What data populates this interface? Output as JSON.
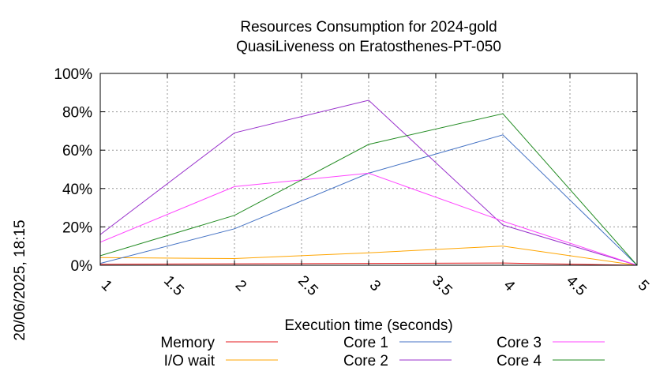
{
  "chart_data": {
    "type": "line",
    "title": "Resources Consumption for 2024-gold",
    "subtitle": "QuasiLiveness on Eratosthenes-PT-050",
    "xlabel": "Execution time (seconds)",
    "ylabel": "",
    "side_label": "20/06/2025, 18:15",
    "xlim": [
      1,
      5
    ],
    "ylim": [
      0,
      100
    ],
    "x_ticks": [
      "1",
      "1.5",
      "2",
      "2.5",
      "3",
      "3.5",
      "4",
      "4.5",
      "5"
    ],
    "y_ticks": [
      "0%",
      "20%",
      "40%",
      "60%",
      "80%",
      "100%"
    ],
    "grid": true,
    "legend_position": "bottom",
    "series": [
      {
        "name": "Memory",
        "color": "#e41a1c",
        "x": [
          1,
          2,
          3,
          4,
          5
        ],
        "values": [
          0.5,
          0.8,
          1.0,
          1.2,
          0
        ]
      },
      {
        "name": "I/O wait",
        "color": "#ffa500",
        "x": [
          1,
          2,
          3,
          4,
          5
        ],
        "values": [
          4,
          3.5,
          6.5,
          10,
          0
        ]
      },
      {
        "name": "Core 1",
        "color": "#4472c4",
        "x": [
          1,
          2,
          3,
          4,
          5
        ],
        "values": [
          1,
          19,
          48,
          68,
          0
        ]
      },
      {
        "name": "Core 2",
        "color": "#9932cc",
        "x": [
          1,
          2,
          3,
          4,
          5
        ],
        "values": [
          16,
          69,
          86,
          21,
          0
        ]
      },
      {
        "name": "Core 3",
        "color": "#ff44ff",
        "x": [
          1,
          2,
          3,
          4,
          5
        ],
        "values": [
          12,
          41,
          48,
          23,
          0
        ]
      },
      {
        "name": "Core 4",
        "color": "#228b22",
        "x": [
          1,
          2,
          3,
          4,
          5
        ],
        "values": [
          5,
          26,
          63,
          79,
          0
        ]
      }
    ]
  }
}
